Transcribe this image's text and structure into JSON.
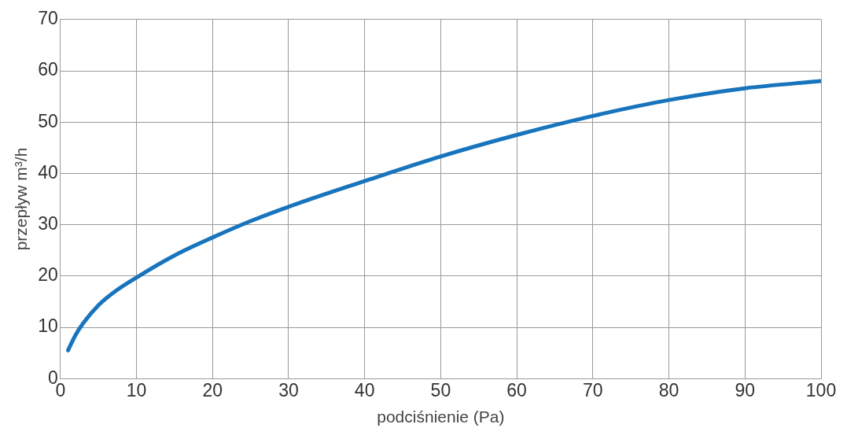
{
  "chart_data": {
    "type": "line",
    "xlabel": "podciśnienie (Pa)",
    "ylabel": "przepływ m³/h",
    "x": [
      1,
      2,
      3,
      5,
      7,
      10,
      15,
      20,
      25,
      30,
      40,
      50,
      60,
      70,
      80,
      90,
      100
    ],
    "series": [
      {
        "color": "#1874bc",
        "values": [
          5.5,
          8.5,
          10.8,
          14.3,
          16.8,
          19.7,
          24,
          27.5,
          30.7,
          33.5,
          38.5,
          43.3,
          47.5,
          51.2,
          54.3,
          56.6,
          58
        ]
      }
    ],
    "xlim": [
      0,
      100
    ],
    "xticks": [
      0,
      10,
      20,
      30,
      40,
      50,
      60,
      70,
      80,
      90,
      100
    ],
    "ylim": [
      0,
      70
    ],
    "yticks": [
      0,
      10,
      20,
      30,
      40,
      50,
      60,
      70
    ],
    "grid": true,
    "legend": false,
    "marker": "none",
    "line_style": "solid"
  }
}
